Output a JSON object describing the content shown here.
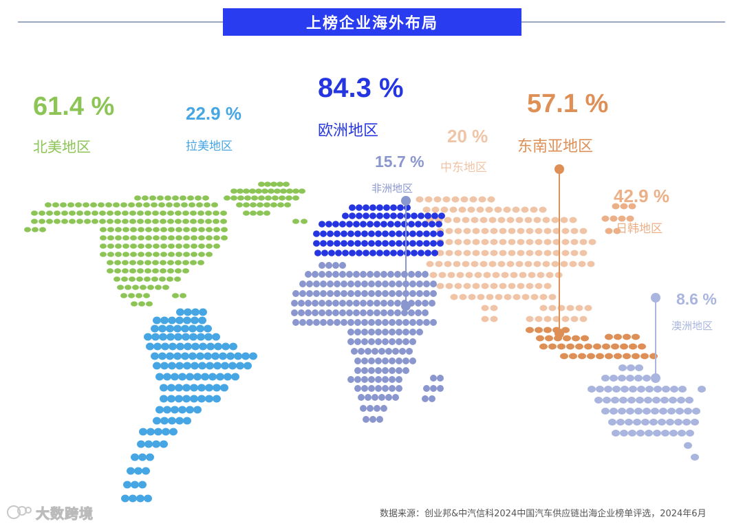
{
  "title": "上榜企业海外布局",
  "source": "数据来源：创业邦&中汽信科2024中国汽车供应链出海企业榜单评选，2024年6月",
  "watermark": "大数跨境",
  "colors": {
    "north_america": "#8cc556",
    "latin_america": "#46a6e4",
    "europe": "#2536e0",
    "africa": "#8a96ce",
    "middle_east": "#f0c4a6",
    "southeast_asia": "#de8f56",
    "japan_korea": "#ecb088",
    "australia": "#a9b5de",
    "accent": "#2a3cf0"
  },
  "chart_data": {
    "type": "map",
    "title": "上榜企业海外布局",
    "unit": "%",
    "regions": [
      {
        "name": "北美地区",
        "value": 61.4,
        "value_label": "61.4 %"
      },
      {
        "name": "拉美地区",
        "value": 22.9,
        "value_label": "22.9 %"
      },
      {
        "name": "欧洲地区",
        "value": 84.3,
        "value_label": "84.3 %"
      },
      {
        "name": "非洲地区",
        "value": 15.7,
        "value_label": "15.7 %"
      },
      {
        "name": "中东地区",
        "value": 20,
        "value_label": "20 %"
      },
      {
        "name": "东南亚地区",
        "value": 57.1,
        "value_label": "57.1 %"
      },
      {
        "name": "日韩地区",
        "value": 42.9,
        "value_label": "42.9 %"
      },
      {
        "name": "澳洲地区",
        "value": 8.6,
        "value_label": "8.6 %"
      }
    ]
  }
}
